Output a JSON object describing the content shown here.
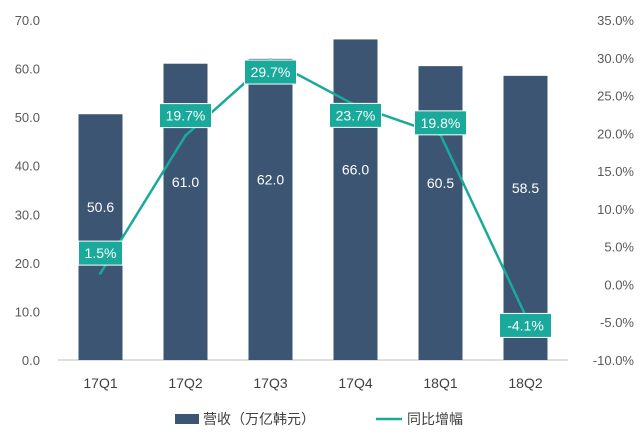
{
  "chart_data": {
    "type": "bar",
    "categories": [
      "17Q1",
      "17Q2",
      "17Q3",
      "17Q4",
      "18Q1",
      "18Q2"
    ],
    "series": [
      {
        "name": "营收（万亿韩元）",
        "type": "bar",
        "axis": "left",
        "values": [
          50.6,
          61.0,
          62.0,
          66.0,
          60.5,
          58.5
        ],
        "labels": [
          "50.6",
          "61.0",
          "62.0",
          "66.0",
          "60.5",
          "58.5"
        ],
        "color": "#3b5572"
      },
      {
        "name": "同比增幅",
        "type": "line",
        "axis": "right",
        "values": [
          1.5,
          19.7,
          29.7,
          23.7,
          19.8,
          -4.1
        ],
        "labels": [
          "1.5%",
          "19.7%",
          "29.7%",
          "23.7%",
          "19.8%",
          "-4.1%"
        ],
        "color": "#1aaa9b"
      }
    ],
    "left_axis": {
      "min": 0,
      "max": 70,
      "step": 10,
      "ticks": [
        "0.0",
        "10.0",
        "20.0",
        "30.0",
        "40.0",
        "50.0",
        "60.0",
        "70.0"
      ]
    },
    "right_axis": {
      "min": -10,
      "max": 35,
      "step": 5,
      "ticks": [
        "-10.0%",
        "-5.0%",
        "0.0%",
        "5.0%",
        "10.0%",
        "15.0%",
        "20.0%",
        "25.0%",
        "30.0%",
        "35.0%"
      ]
    },
    "legend": {
      "position": "bottom",
      "items": [
        "营收（万亿韩元）",
        "同比增幅"
      ]
    },
    "grid": false
  }
}
